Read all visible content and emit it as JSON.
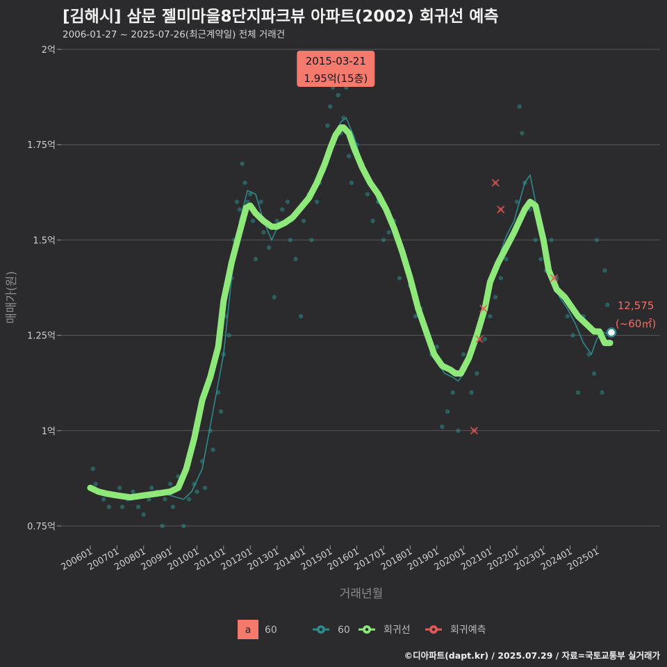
{
  "header": {
    "title": "[김해시] 삼문 젤미마을8단지파크뷰 아파트(2002) 회귀선 예측",
    "subtitle": "2006-01-27 ~ 2025-07-26(최근계약일) 전체 거래건"
  },
  "footer": "©디아파트(dapt.kr) / 2025.07.29 / 자료=국토교통부 실거래가",
  "colors": {
    "background": "#2b2b2d",
    "regression": "#8ee87a",
    "trades": "#2e8a8a",
    "prediction": "#e05a5a",
    "annotation_bg": "#f47a6e",
    "grid": "#5a5a5a"
  },
  "chart_data": {
    "type": "line",
    "xlabel": "거래년월",
    "ylabel": "매매가(원)",
    "x_range": [
      2006.0,
      2025.8
    ],
    "ylim": [
      0.7,
      2.02
    ],
    "y_ticks": [
      {
        "value": 0.75,
        "label": "0.75억"
      },
      {
        "value": 1.0,
        "label": "1억"
      },
      {
        "value": 1.25,
        "label": "1.25억"
      },
      {
        "value": 1.5,
        "label": "1.5억"
      },
      {
        "value": 1.75,
        "label": "1.75억"
      },
      {
        "value": 2.0,
        "label": "2억"
      }
    ],
    "x_ticks": [
      {
        "value": 2006.0,
        "label": "200601"
      },
      {
        "value": 2007.0,
        "label": "200701"
      },
      {
        "value": 2008.0,
        "label": "200801"
      },
      {
        "value": 2009.0,
        "label": "200901"
      },
      {
        "value": 2010.0,
        "label": "201001"
      },
      {
        "value": 2011.0,
        "label": "201101"
      },
      {
        "value": 2012.0,
        "label": "201201"
      },
      {
        "value": 2013.0,
        "label": "201301"
      },
      {
        "value": 2014.0,
        "label": "201401"
      },
      {
        "value": 2015.0,
        "label": "201501"
      },
      {
        "value": 2016.0,
        "label": "201601"
      },
      {
        "value": 2017.0,
        "label": "201701"
      },
      {
        "value": 2018.0,
        "label": "201801"
      },
      {
        "value": 2019.0,
        "label": "201901"
      },
      {
        "value": 2020.0,
        "label": "202001"
      },
      {
        "value": 2021.0,
        "label": "202101"
      },
      {
        "value": 2022.0,
        "label": "202201"
      },
      {
        "value": 2023.0,
        "label": "202301"
      },
      {
        "value": 2024.0,
        "label": "202401"
      },
      {
        "value": 2025.0,
        "label": "202501"
      }
    ],
    "series": [
      {
        "name": "회귀선",
        "x": [
          2006.0,
          2006.3,
          2006.6,
          2007.0,
          2007.5,
          2008.0,
          2008.5,
          2009.0,
          2009.3,
          2009.6,
          2009.9,
          2010.2,
          2010.5,
          2010.8,
          2011.0,
          2011.3,
          2011.6,
          2011.85,
          2012.0,
          2012.2,
          2012.5,
          2012.8,
          2013.0,
          2013.3,
          2013.6,
          2013.9,
          2014.2,
          2014.5,
          2014.8,
          2015.0,
          2015.2,
          2015.4,
          2015.5,
          2015.7,
          2015.9,
          2016.2,
          2016.5,
          2016.8,
          2017.1,
          2017.4,
          2017.7,
          2018.0,
          2018.3,
          2018.6,
          2018.9,
          2019.2,
          2019.5,
          2019.7,
          2019.9,
          2020.2,
          2020.5,
          2020.8,
          2021.0,
          2021.3,
          2021.6,
          2021.9,
          2022.1,
          2022.3,
          2022.5,
          2022.7,
          2023.0,
          2023.2,
          2023.5,
          2023.8,
          2024.0,
          2024.3,
          2024.6,
          2024.9,
          2025.1,
          2025.3,
          2025.5
        ],
        "values": [
          0.85,
          0.84,
          0.835,
          0.83,
          0.825,
          0.83,
          0.835,
          0.84,
          0.85,
          0.9,
          0.98,
          1.08,
          1.14,
          1.22,
          1.34,
          1.44,
          1.52,
          1.585,
          1.59,
          1.57,
          1.55,
          1.535,
          1.535,
          1.545,
          1.56,
          1.585,
          1.61,
          1.65,
          1.7,
          1.74,
          1.775,
          1.795,
          1.795,
          1.78,
          1.74,
          1.69,
          1.65,
          1.62,
          1.58,
          1.53,
          1.47,
          1.4,
          1.32,
          1.26,
          1.2,
          1.17,
          1.16,
          1.15,
          1.15,
          1.19,
          1.25,
          1.32,
          1.39,
          1.44,
          1.48,
          1.52,
          1.55,
          1.58,
          1.6,
          1.59,
          1.5,
          1.42,
          1.37,
          1.35,
          1.33,
          1.3,
          1.28,
          1.26,
          1.26,
          1.23,
          1.23
        ]
      },
      {
        "name": "60",
        "x": [
          2006.0,
          2006.5,
          2007.0,
          2007.5,
          2008.0,
          2008.5,
          2009.0,
          2009.5,
          2009.8,
          2010.2,
          2010.6,
          2011.0,
          2011.3,
          2011.6,
          2011.9,
          2012.2,
          2012.5,
          2012.8,
          2013.0,
          2013.3,
          2013.6,
          2013.9,
          2014.2,
          2014.5,
          2014.8,
          2015.0,
          2015.2,
          2015.4,
          2015.6,
          2015.9,
          2016.2,
          2016.5,
          2016.8,
          2017.1,
          2017.5,
          2017.8,
          2018.1,
          2018.4,
          2018.7,
          2019.0,
          2019.3,
          2019.6,
          2019.8,
          2020.1,
          2020.4,
          2020.7,
          2021.0,
          2021.3,
          2021.6,
          2021.9,
          2022.1,
          2022.3,
          2022.5,
          2022.7,
          2023.0,
          2023.3,
          2023.6,
          2023.9,
          2024.2,
          2024.5,
          2024.8,
          2025.0,
          2025.2,
          2025.5
        ],
        "values": [
          0.85,
          0.83,
          0.835,
          0.82,
          0.83,
          0.84,
          0.83,
          0.82,
          0.84,
          0.9,
          1.05,
          1.2,
          1.4,
          1.55,
          1.63,
          1.62,
          1.55,
          1.5,
          1.53,
          1.54,
          1.55,
          1.59,
          1.6,
          1.64,
          1.68,
          1.72,
          1.77,
          1.81,
          1.82,
          1.77,
          1.7,
          1.66,
          1.6,
          1.57,
          1.51,
          1.45,
          1.38,
          1.3,
          1.25,
          1.18,
          1.15,
          1.14,
          1.13,
          1.16,
          1.24,
          1.3,
          1.38,
          1.45,
          1.51,
          1.55,
          1.6,
          1.65,
          1.67,
          1.6,
          1.48,
          1.42,
          1.35,
          1.32,
          1.28,
          1.23,
          1.2,
          1.24,
          1.26,
          1.25
        ]
      }
    ],
    "scatter": {
      "name": "60",
      "x": [
        2006.1,
        2006.2,
        2006.4,
        2006.5,
        2006.7,
        2006.9,
        2007.1,
        2007.2,
        2007.4,
        2007.6,
        2007.8,
        2008.0,
        2008.2,
        2008.3,
        2008.5,
        2008.7,
        2008.8,
        2009.0,
        2009.1,
        2009.3,
        2009.5,
        2009.7,
        2009.9,
        2010.0,
        2010.2,
        2010.3,
        2010.5,
        2010.6,
        2010.8,
        2010.9,
        2011.0,
        2011.1,
        2011.2,
        2011.3,
        2011.4,
        2011.5,
        2011.6,
        2011.7,
        2011.8,
        2011.9,
        2012.0,
        2012.1,
        2012.2,
        2012.4,
        2012.5,
        2012.7,
        2012.9,
        2013.0,
        2013.2,
        2013.4,
        2013.5,
        2013.7,
        2013.9,
        2014.0,
        2014.2,
        2014.3,
        2014.5,
        2014.6,
        2014.8,
        2014.9,
        2015.0,
        2015.1,
        2015.2,
        2015.3,
        2015.4,
        2015.5,
        2015.6,
        2015.7,
        2015.8,
        2016.0,
        2016.2,
        2016.4,
        2016.6,
        2016.8,
        2017.0,
        2017.2,
        2017.4,
        2017.6,
        2017.8,
        2018.0,
        2018.2,
        2018.4,
        2018.6,
        2018.8,
        2019.0,
        2019.2,
        2019.4,
        2019.6,
        2019.8,
        2020.0,
        2020.3,
        2020.5,
        2020.8,
        2021.0,
        2021.2,
        2021.4,
        2021.6,
        2021.8,
        2022.0,
        2022.1,
        2022.2,
        2022.3,
        2022.5,
        2022.7,
        2022.9,
        2023.1,
        2023.3,
        2023.5,
        2023.7,
        2023.9,
        2024.1,
        2024.3,
        2024.5,
        2024.7,
        2024.9,
        2025.0,
        2025.2,
        2025.3,
        2025.4
      ],
      "values": [
        0.9,
        0.86,
        0.84,
        0.82,
        0.8,
        0.83,
        0.85,
        0.8,
        0.82,
        0.84,
        0.8,
        0.78,
        0.82,
        0.85,
        0.84,
        0.75,
        0.82,
        0.86,
        0.8,
        0.88,
        0.75,
        0.82,
        0.86,
        0.84,
        0.92,
        0.85,
        1.0,
        0.95,
        1.1,
        1.05,
        1.2,
        1.3,
        1.25,
        1.4,
        1.5,
        1.6,
        1.58,
        1.7,
        1.65,
        1.6,
        1.62,
        1.55,
        1.45,
        1.6,
        1.52,
        1.48,
        1.35,
        1.55,
        1.58,
        1.6,
        1.5,
        1.45,
        1.3,
        1.55,
        1.62,
        1.5,
        1.6,
        1.65,
        1.7,
        1.8,
        1.85,
        1.9,
        1.95,
        1.88,
        1.78,
        1.82,
        1.9,
        1.72,
        1.65,
        1.75,
        1.7,
        1.62,
        1.55,
        1.6,
        1.5,
        1.52,
        1.55,
        1.4,
        1.45,
        1.38,
        1.3,
        1.32,
        1.25,
        1.2,
        1.22,
        1.01,
        1.05,
        1.1,
        1.0,
        1.2,
        1.1,
        1.15,
        1.24,
        1.3,
        1.35,
        1.4,
        1.45,
        1.5,
        1.6,
        1.85,
        1.78,
        1.65,
        1.58,
        1.5,
        1.45,
        1.42,
        1.5,
        1.4,
        1.35,
        1.3,
        1.25,
        1.1,
        1.3,
        1.2,
        1.15,
        1.5,
        1.1,
        1.42,
        1.33
      ]
    },
    "predictions": {
      "name": "회귀예측",
      "x": [
        2020.4,
        2020.6,
        2020.75,
        2021.2,
        2021.4,
        2023.4
      ],
      "values": [
        1.0,
        1.24,
        1.32,
        1.65,
        1.58,
        1.4
      ]
    },
    "annotation": {
      "x": 2015.21,
      "value": 1.95,
      "date": "2015-03-21",
      "label": "1.95억(15층)"
    },
    "last_point": {
      "x": 2025.55,
      "value": 1.2575,
      "price": "12,575",
      "area": "(~60㎡)"
    },
    "legend": {
      "badge_letter": "a",
      "badge_label": "60",
      "items": [
        {
          "key": "trades",
          "label": "60"
        },
        {
          "key": "regression",
          "label": "회귀선"
        },
        {
          "key": "prediction",
          "label": "회귀예측"
        }
      ]
    }
  }
}
